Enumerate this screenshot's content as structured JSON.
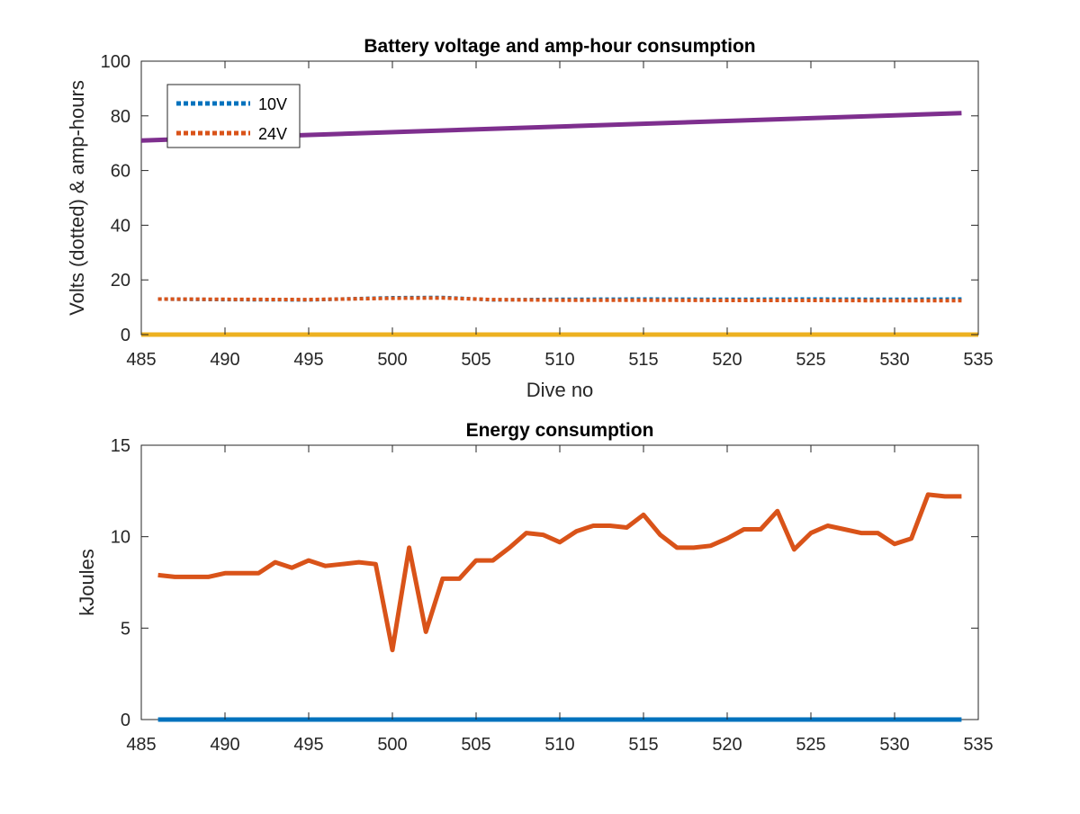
{
  "colors": {
    "blue": "#0072BD",
    "orange": "#D95319",
    "yellow": "#EDB120",
    "purple": "#7E2F8E",
    "axis": "#262626"
  },
  "chart_data": [
    {
      "type": "line",
      "title": "Battery voltage and amp-hour consumption",
      "xlabel": "Dive no",
      "ylabel": "Volts (dotted) & amp-hours",
      "xlim": [
        485,
        535
      ],
      "ylim": [
        0,
        100
      ],
      "xticks": [
        485,
        490,
        495,
        500,
        505,
        510,
        515,
        520,
        525,
        530,
        535
      ],
      "yticks": [
        0,
        20,
        40,
        60,
        80,
        100
      ],
      "grid": false,
      "legend": {
        "placement": "top-left",
        "entries": [
          "10V",
          "24V"
        ]
      },
      "series": [
        {
          "name": "10V",
          "color": "#0072BD",
          "style": "dotted",
          "x": [
            486,
            490,
            495,
            500,
            503,
            506,
            510,
            515,
            520,
            525,
            530,
            534
          ],
          "y": [
            13.0,
            12.8,
            12.7,
            13.5,
            13.6,
            12.7,
            12.9,
            13.0,
            12.9,
            13.0,
            12.9,
            13.0
          ]
        },
        {
          "name": "24V",
          "color": "#D95319",
          "style": "dotted",
          "x": [
            486,
            490,
            495,
            500,
            503,
            506,
            510,
            515,
            520,
            525,
            530,
            534
          ],
          "y": [
            13.0,
            12.9,
            12.8,
            13.3,
            13.4,
            12.8,
            12.6,
            12.6,
            12.5,
            12.5,
            12.4,
            12.4
          ]
        },
        {
          "color": "#7E2F8E",
          "style": "solid",
          "x": [
            485,
            534
          ],
          "y": [
            71,
            81
          ]
        },
        {
          "color": "#EDB120",
          "style": "solid",
          "x": [
            485,
            535
          ],
          "y": [
            0,
            0
          ]
        }
      ]
    },
    {
      "type": "line",
      "title": "Energy consumption",
      "xlabel": "",
      "ylabel": "kJoules",
      "xlim": [
        485,
        535
      ],
      "ylim": [
        0,
        15
      ],
      "xticks": [
        485,
        490,
        495,
        500,
        505,
        510,
        515,
        520,
        525,
        530,
        535
      ],
      "yticks": [
        0,
        5,
        10,
        15
      ],
      "grid": false,
      "series": [
        {
          "color": "#D95319",
          "style": "solid",
          "x": [
            486,
            487,
            488,
            489,
            490,
            491,
            492,
            493,
            494,
            495,
            496,
            497,
            498,
            499,
            500,
            501,
            502,
            503,
            504,
            505,
            506,
            507,
            508,
            509,
            510,
            511,
            512,
            513,
            514,
            515,
            516,
            517,
            518,
            519,
            520,
            521,
            522,
            523,
            524,
            525,
            526,
            527,
            528,
            529,
            530,
            531,
            532,
            533,
            534
          ],
          "y": [
            7.9,
            7.8,
            7.8,
            7.8,
            8.0,
            8.0,
            8.0,
            8.6,
            8.3,
            8.7,
            8.4,
            8.5,
            8.6,
            8.5,
            3.8,
            9.4,
            4.8,
            7.7,
            7.7,
            8.7,
            8.7,
            9.4,
            10.2,
            10.1,
            9.7,
            10.3,
            10.6,
            10.6,
            10.5,
            11.2,
            10.1,
            9.4,
            9.4,
            9.5,
            9.9,
            10.4,
            10.4,
            11.4,
            9.3,
            10.2,
            10.6,
            10.4,
            10.2,
            10.2,
            9.6,
            9.9,
            12.3,
            12.2,
            12.2
          ]
        },
        {
          "color": "#0072BD",
          "style": "solid",
          "x": [
            486,
            534
          ],
          "y": [
            0,
            0
          ]
        }
      ]
    }
  ]
}
